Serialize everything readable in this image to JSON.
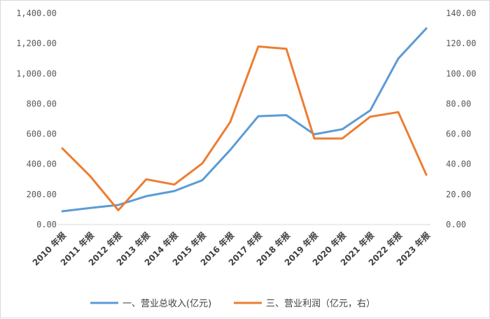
{
  "chart_data": {
    "type": "line",
    "title": "",
    "categories": [
      "2010 年报",
      "2011 年报",
      "2012 年报",
      "2013 年报",
      "2014 年报",
      "2015 年报",
      "2016 年报",
      "2017 年报",
      "2018 年报",
      "2019 年报",
      "2020 年报",
      "2021 年报",
      "2022 年报",
      "2023 年报"
    ],
    "y_left": {
      "min": 0,
      "max": 1400,
      "step": 200,
      "tick_labels": [
        "0.00",
        "200.00",
        "400.00",
        "600.00",
        "800.00",
        "1,000.00",
        "1,200.00",
        "1,400.00"
      ]
    },
    "y_right": {
      "min": 0,
      "max": 140,
      "step": 20,
      "tick_labels": [
        "0.00",
        "20.00",
        "40.00",
        "60.00",
        "80.00",
        "100.00",
        "120.00",
        "140.00"
      ]
    },
    "series": [
      {
        "name": "一、营业总收入(亿元)",
        "axis": "left",
        "color": "#5b9bd5",
        "values": [
          88,
          110,
          130,
          188,
          222,
          294,
          495,
          718,
          725,
          598,
          632,
          757,
          1100,
          1300
        ]
      },
      {
        "name": "三、营业利润（亿元，右）",
        "axis": "right",
        "color": "#ed7d31",
        "values": [
          50.5,
          32,
          9.5,
          30,
          26.5,
          40.5,
          68,
          118,
          116.5,
          57,
          57,
          71.5,
          74.5,
          33
        ]
      }
    ],
    "grid": false,
    "legend_position": "bottom"
  }
}
